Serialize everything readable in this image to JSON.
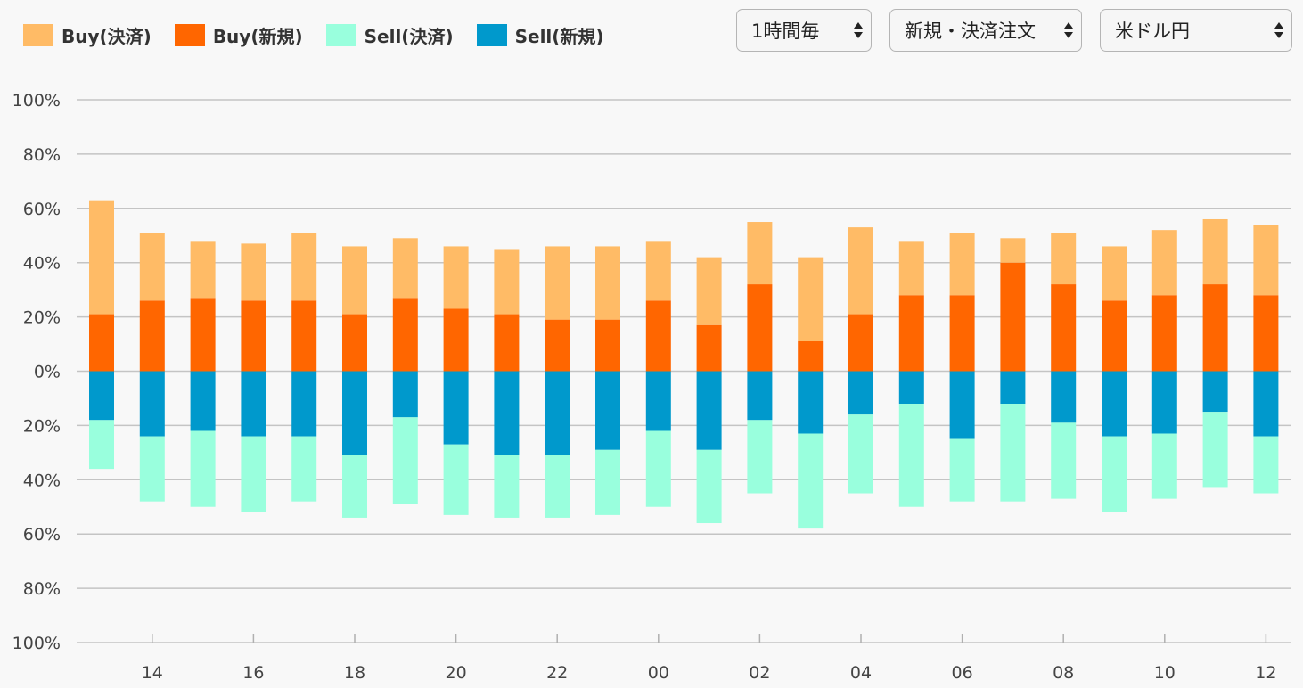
{
  "legend": [
    {
      "label": "Buy(決済)",
      "color": "#ffbb66"
    },
    {
      "label": "Buy(新規)",
      "color": "#ff6600"
    },
    {
      "label": "Sell(決済)",
      "color": "#99ffdd"
    },
    {
      "label": "Sell(新規)",
      "color": "#0099cc"
    }
  ],
  "controls": {
    "interval": {
      "value": "1時間毎",
      "icon": "up-down-arrows-icon"
    },
    "order_type": {
      "value": "新規・決済注文",
      "icon": "up-down-arrows-icon"
    },
    "currency_pair": {
      "value": "米ドル円",
      "icon": "up-down-arrows-icon"
    }
  },
  "chart_data": {
    "type": "bar",
    "stacked": true,
    "y_tick_labels": [
      "100%",
      "80%",
      "60%",
      "40%",
      "20%",
      "0%",
      "20%",
      "40%",
      "60%",
      "80%",
      "100%"
    ],
    "y_ticks": [
      100,
      80,
      60,
      40,
      20,
      0,
      -20,
      -40,
      -60,
      -80,
      -100
    ],
    "ylim": [
      -100,
      100
    ],
    "grid": true,
    "legend_position": "top-left",
    "x_tick_labels": [
      "14",
      "16",
      "18",
      "20",
      "22",
      "00",
      "02",
      "04",
      "06",
      "08",
      "10",
      "12"
    ],
    "x": [
      "13",
      "14",
      "15",
      "16",
      "17",
      "18",
      "19",
      "20",
      "21",
      "22",
      "23",
      "00",
      "01",
      "02",
      "03",
      "04",
      "05",
      "06",
      "07",
      "08",
      "09",
      "10",
      "11",
      "12"
    ],
    "series": [
      {
        "name": "Buy(新規)",
        "color": "#ff6600",
        "values": [
          21,
          26,
          27,
          26,
          26,
          21,
          27,
          23,
          21,
          19,
          19,
          26,
          17,
          32,
          11,
          21,
          28,
          28,
          40,
          32,
          26,
          28,
          32,
          28
        ]
      },
      {
        "name": "Buy(決済)",
        "color": "#ffbb66",
        "values": [
          42,
          25,
          21,
          21,
          25,
          25,
          22,
          23,
          24,
          27,
          27,
          22,
          25,
          23,
          31,
          32,
          20,
          23,
          9,
          19,
          20,
          24,
          24,
          26
        ]
      },
      {
        "name": "Sell(新規)",
        "color": "#0099cc",
        "values": [
          -18,
          -24,
          -22,
          -24,
          -24,
          -31,
          -17,
          -27,
          -31,
          -31,
          -29,
          -22,
          -29,
          -18,
          -23,
          -16,
          -12,
          -25,
          -12,
          -19,
          -24,
          -23,
          -15,
          -24
        ]
      },
      {
        "name": "Sell(決済)",
        "color": "#99ffdd",
        "values": [
          -18,
          -24,
          -28,
          -28,
          -24,
          -23,
          -32,
          -26,
          -23,
          -23,
          -24,
          -28,
          -27,
          -27,
          -35,
          -29,
          -38,
          -23,
          -36,
          -28,
          -28,
          -24,
          -28,
          -21
        ]
      }
    ]
  }
}
